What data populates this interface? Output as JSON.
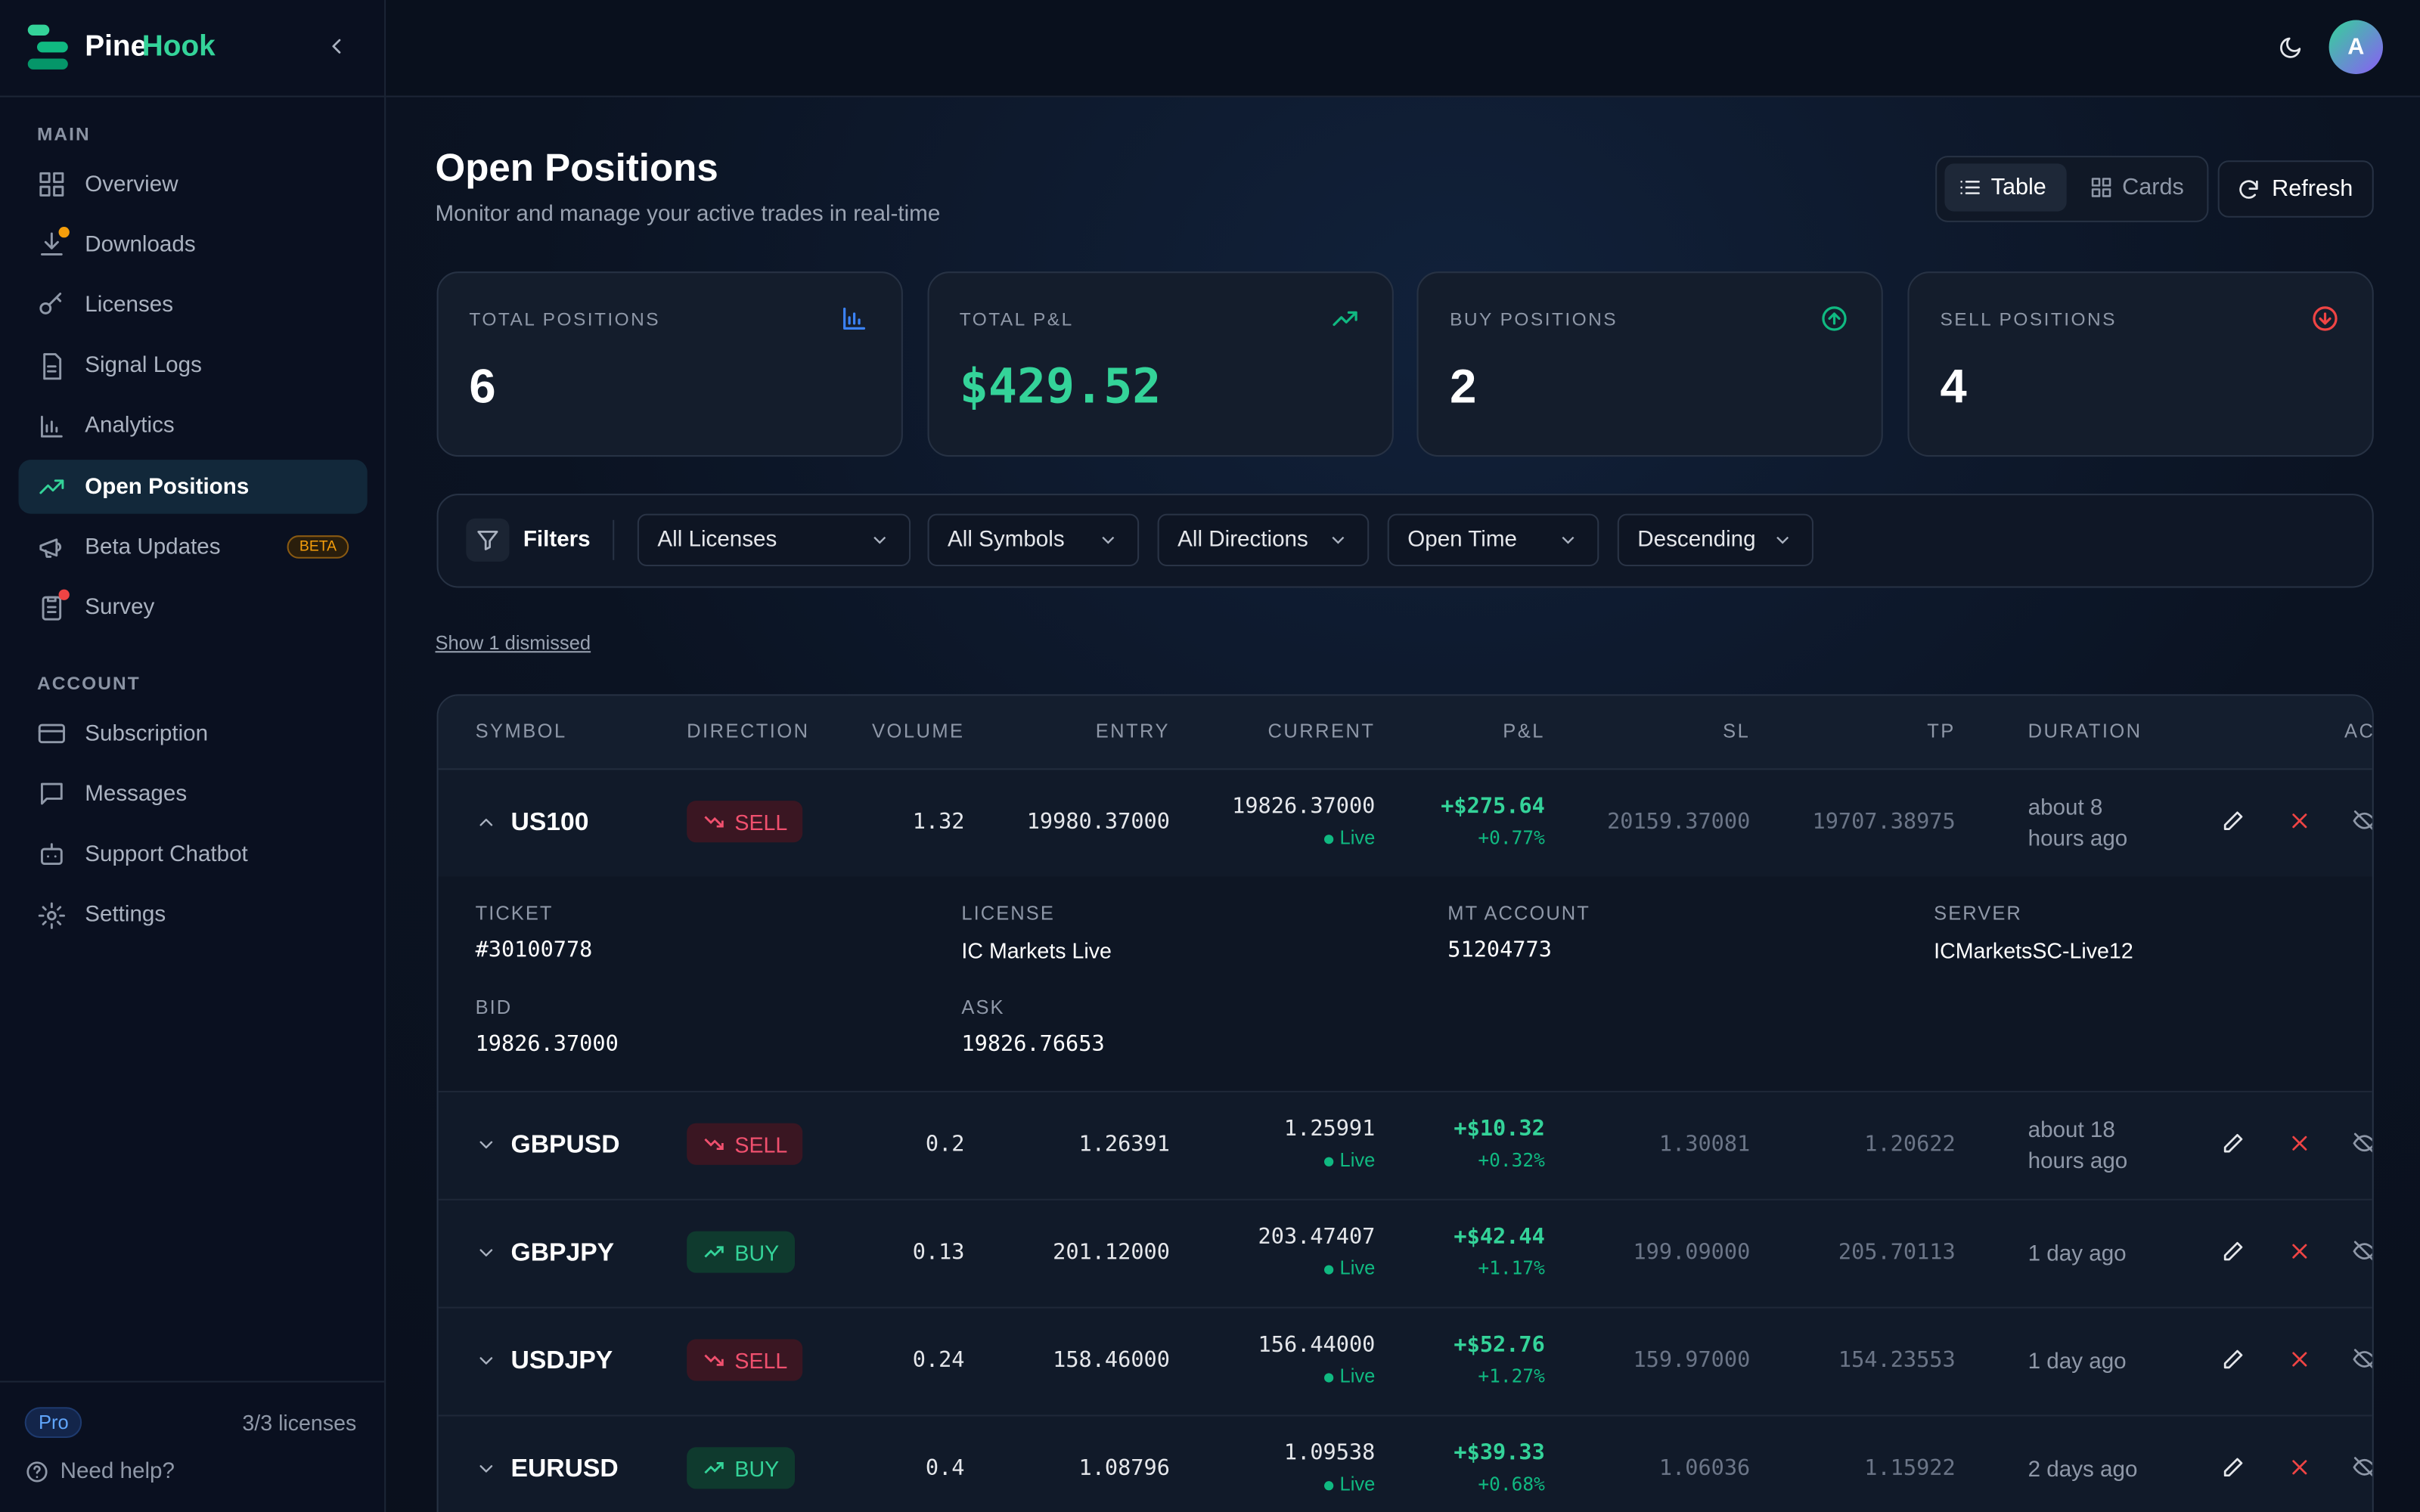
{
  "brand": {
    "name_a": "Pine",
    "name_b": "Hook"
  },
  "sidebar": {
    "sections": [
      {
        "title": "MAIN",
        "items": [
          "Overview",
          "Downloads",
          "Licenses",
          "Signal Logs",
          "Analytics",
          "Open Positions",
          "Beta Updates",
          "Survey"
        ]
      },
      {
        "title": "ACCOUNT",
        "items": [
          "Subscription",
          "Messages",
          "Support Chatbot",
          "Settings"
        ]
      }
    ],
    "beta_badge": "BETA",
    "plan": "Pro",
    "licenses": "3/3 licenses",
    "help": "Need help?"
  },
  "avatar": "A",
  "header": {
    "title": "Open Positions",
    "subtitle": "Monitor and manage your active trades in real-time"
  },
  "view_toggle": [
    "Table",
    "Cards"
  ],
  "refresh": "Refresh",
  "stats": [
    {
      "label": "TOTAL POSITIONS",
      "value": "6"
    },
    {
      "label": "TOTAL P&L",
      "value": "$429.52"
    },
    {
      "label": "BUY POSITIONS",
      "value": "2"
    },
    {
      "label": "SELL POSITIONS",
      "value": "4"
    }
  ],
  "filters": {
    "label": "Filters",
    "selects": [
      "All Licenses",
      "All Symbols",
      "All Directions",
      "Open Time",
      "Descending"
    ]
  },
  "dismissed": "Show 1 dismissed",
  "table": {
    "columns": [
      "SYMBOL",
      "DIRECTION",
      "VOLUME",
      "ENTRY",
      "CURRENT",
      "P&L",
      "SL",
      "TP",
      "DURATION",
      "ACTIONS"
    ],
    "live": "Live",
    "rows": [
      {
        "symbol": "US100",
        "direction": "SELL",
        "volume": "1.32",
        "entry": "19980.37000",
        "current": "19826.37000",
        "pnl": "+$275.64",
        "pnl_pct": "+0.77%",
        "sl": "20159.37000",
        "tp": "19707.38975",
        "duration": "about 8 hours ago"
      },
      {
        "symbol": "GBPUSD",
        "direction": "SELL",
        "volume": "0.2",
        "entry": "1.26391",
        "current": "1.25991",
        "pnl": "+$10.32",
        "pnl_pct": "+0.32%",
        "sl": "1.30081",
        "tp": "1.20622",
        "duration": "about 18 hours ago"
      },
      {
        "symbol": "GBPJPY",
        "direction": "BUY",
        "volume": "0.13",
        "entry": "201.12000",
        "current": "203.47407",
        "pnl": "+$42.44",
        "pnl_pct": "+1.17%",
        "sl": "199.09000",
        "tp": "205.70113",
        "duration": "1 day ago"
      },
      {
        "symbol": "USDJPY",
        "direction": "SELL",
        "volume": "0.24",
        "entry": "158.46000",
        "current": "156.44000",
        "pnl": "+$52.76",
        "pnl_pct": "+1.27%",
        "sl": "159.97000",
        "tp": "154.23553",
        "duration": "1 day ago"
      },
      {
        "symbol": "EURUSD",
        "direction": "BUY",
        "volume": "0.4",
        "entry": "1.08796",
        "current": "1.09538",
        "pnl": "+$39.33",
        "pnl_pct": "+0.68%",
        "sl": "1.06036",
        "tp": "1.15922",
        "duration": "2 days ago"
      }
    ],
    "detail": [
      {
        "label": "TICKET",
        "value": "#30100778"
      },
      {
        "label": "LICENSE",
        "value": "IC Markets Live"
      },
      {
        "label": "MT ACCOUNT",
        "value": "51204773"
      },
      {
        "label": "SERVER",
        "value": "ICMarketsSC-Live12"
      },
      {
        "label": "BID",
        "value": "19826.37000"
      },
      {
        "label": "ASK",
        "value": "19826.76653"
      }
    ]
  }
}
